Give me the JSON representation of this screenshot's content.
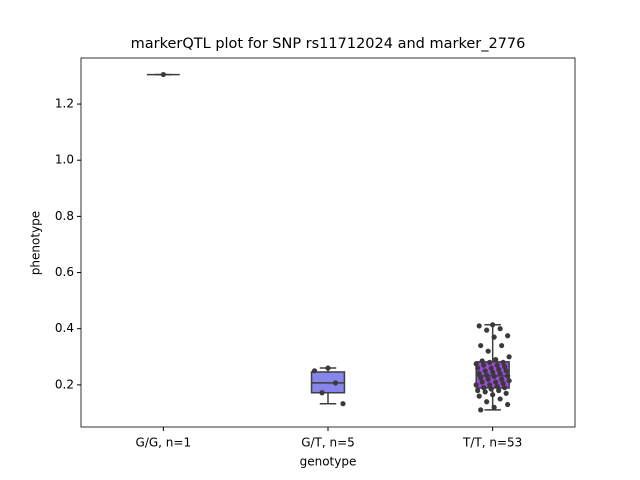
{
  "chart_data": {
    "type": "box",
    "title": "markerQTL plot for SNP rs11712024 and marker_2776",
    "xlabel": "genotype",
    "ylabel": "phenotype",
    "categories": [
      "G/G, n=1",
      "G/T, n=5",
      "T/T, n=53"
    ],
    "ylim": [
      0.05,
      1.364
    ],
    "yticks": [
      0.2,
      0.4,
      0.6,
      0.8,
      {
        "value": 1,
        "label": "1.0"
      },
      1.2
    ],
    "boxes": [
      {
        "color": "#6fa86f",
        "min": 1.305,
        "q1": 1.305,
        "median": 1.305,
        "q3": 1.305,
        "max": 1.305,
        "points": [
          1.305
        ]
      },
      {
        "color": "#8585ea",
        "min": 0.133,
        "q1": 0.172,
        "median": 0.207,
        "q3": 0.246,
        "max": 0.26,
        "points": [
          0.26,
          0.25,
          0.207,
          0.172,
          0.133
        ]
      },
      {
        "color": "#a348e3",
        "min": 0.111,
        "q1": 0.189,
        "median": 0.232,
        "q3": 0.282,
        "max": 0.414,
        "points": [
          0.414,
          0.41,
          0.4,
          0.395,
          0.375,
          0.37,
          0.34,
          0.34,
          0.32,
          0.3,
          0.29,
          0.285,
          0.28,
          0.28,
          0.275,
          0.27,
          0.27,
          0.265,
          0.26,
          0.26,
          0.255,
          0.25,
          0.25,
          0.245,
          0.24,
          0.24,
          0.235,
          0.232,
          0.23,
          0.225,
          0.22,
          0.22,
          0.215,
          0.21,
          0.21,
          0.205,
          0.2,
          0.2,
          0.195,
          0.19,
          0.19,
          0.185,
          0.18,
          0.18,
          0.175,
          0.17,
          0.165,
          0.16,
          0.15,
          0.14,
          0.13,
          0.12,
          0.111
        ]
      }
    ]
  }
}
